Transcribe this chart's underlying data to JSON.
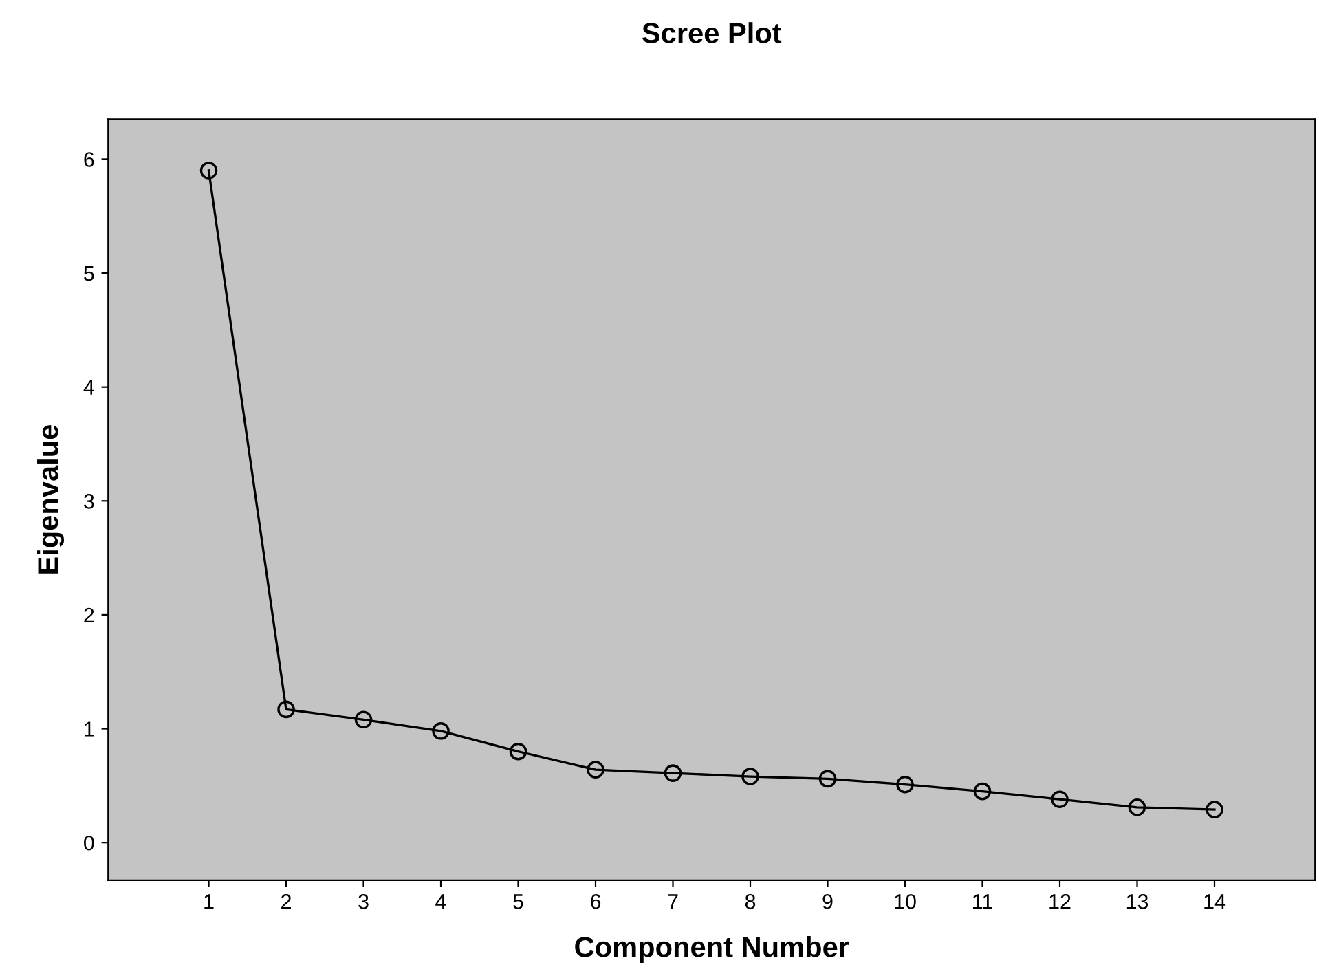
{
  "chart_data": {
    "type": "line",
    "title": "Scree Plot",
    "xlabel": "Component Number",
    "ylabel": "Eigenvalue",
    "x": [
      1,
      2,
      3,
      4,
      5,
      6,
      7,
      8,
      9,
      10,
      11,
      12,
      13,
      14
    ],
    "series": [
      {
        "color": "#000000",
        "values": [
          5.9,
          1.17,
          1.08,
          0.98,
          0.8,
          0.64,
          0.61,
          0.58,
          0.56,
          0.51,
          0.45,
          0.38,
          0.31,
          0.29
        ]
      }
    ],
    "xlim": [
      -0.3,
      15.3
    ],
    "xticks": [
      1,
      2,
      3,
      4,
      5,
      6,
      7,
      8,
      9,
      10,
      11,
      12,
      13,
      14
    ],
    "ylim": [
      -0.33,
      6.35
    ],
    "yticks": [
      0,
      1,
      2,
      3,
      4,
      5,
      6
    ],
    "marker": "circle",
    "line_style": "solid"
  }
}
